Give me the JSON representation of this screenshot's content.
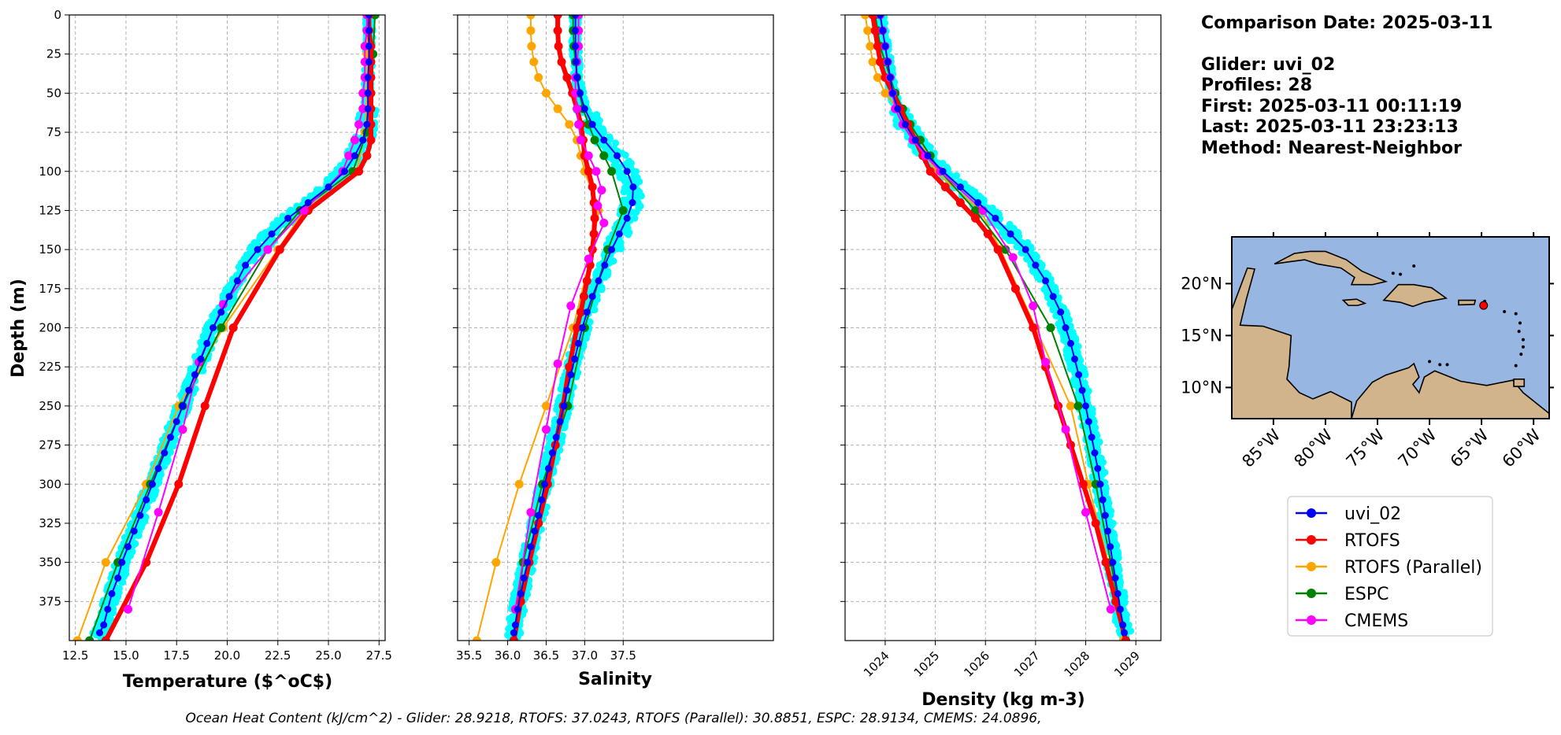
{
  "info": {
    "comparison_date": "Comparison Date: 2025-03-11",
    "glider": "Glider: uvi_02",
    "profiles": "Profiles: 28",
    "first": "First: 2025-03-11 00:11:19",
    "last": "Last: 2025-03-11 23:23:13",
    "method": "Method: Nearest-Neighbor"
  },
  "footer": "Ocean Heat Content (kJ/cm^2) - Glider: 28.9218,  RTOFS: 37.0243,  RTOFS (Parallel): 30.8851,  ESPC: 28.9134,  CMEMS: 24.0896,",
  "colors": {
    "uvi_02": "#0000ff",
    "RTOFS": "#ff0000",
    "RTOFS (Parallel)": "#ffa500",
    "ESPC": "#008000",
    "CMEMS": "#ff00ff",
    "glider_cloud": "#00ffff",
    "ocean": "#97b6e1",
    "land": "#d2b48c"
  },
  "legend": [
    {
      "name": "uvi_02",
      "color": "#0000ff"
    },
    {
      "name": "RTOFS",
      "color": "#ff0000"
    },
    {
      "name": "RTOFS (Parallel)",
      "color": "#ffa500"
    },
    {
      "name": "ESPC",
      "color": "#008000"
    },
    {
      "name": "CMEMS",
      "color": "#ff00ff"
    }
  ],
  "map": {
    "lon_ticks": [
      "85°W",
      "80°W",
      "75°W",
      "70°W",
      "65°W",
      "60°W"
    ],
    "lat_ticks": [
      "20°N",
      "15°N",
      "10°N"
    ],
    "lon_range": [
      -89,
      -58.5
    ],
    "lat_range": [
      7,
      24.5
    ],
    "glider_position": {
      "lon": -64.8,
      "lat": 17.9
    }
  },
  "chart_data": [
    {
      "type": "line",
      "name": "temperature",
      "xlabel": "Temperature ($^oC$)",
      "ylabel": "Depth (m)",
      "xlim": [
        12.2,
        27.8
      ],
      "ylim": [
        400,
        0
      ],
      "x_ticks": [
        "12.5",
        "15.0",
        "17.5",
        "20.0",
        "22.5",
        "25.0",
        "27.5"
      ],
      "x_tick_values": [
        12.5,
        15,
        17.5,
        20,
        22.5,
        25,
        27.5
      ],
      "y_ticks": [
        0,
        25,
        50,
        75,
        100,
        125,
        150,
        175,
        200,
        225,
        250,
        275,
        300,
        325,
        350,
        375
      ],
      "grid": true,
      "series": [
        {
          "name": "uvi_02",
          "depth": [
            0,
            10,
            20,
            30,
            40,
            50,
            60,
            70,
            80,
            90,
            100,
            110,
            120,
            130,
            140,
            150,
            160,
            170,
            180,
            190,
            200,
            210,
            220,
            230,
            240,
            250,
            260,
            270,
            280,
            290,
            300,
            310,
            320,
            330,
            340,
            350,
            360,
            370,
            380,
            390,
            395
          ],
          "values": [
            27.0,
            27.0,
            27.0,
            27.0,
            26.95,
            26.95,
            26.95,
            26.9,
            26.7,
            26.3,
            25.8,
            25.0,
            24.0,
            23.0,
            22.2,
            21.5,
            20.9,
            20.5,
            20.1,
            19.7,
            19.3,
            19.0,
            18.7,
            18.4,
            18.1,
            17.8,
            17.5,
            17.2,
            16.9,
            16.6,
            16.3,
            16.0,
            15.7,
            15.4,
            15.1,
            14.8,
            14.6,
            14.3,
            14.1,
            13.9,
            13.7
          ]
        },
        {
          "name": "RTOFS",
          "depth": [
            0,
            10,
            20,
            30,
            40,
            50,
            60,
            70,
            80,
            90,
            100,
            125,
            150,
            200,
            250,
            300,
            350,
            400
          ],
          "values": [
            27.0,
            27.0,
            27.1,
            27.1,
            27.1,
            27.1,
            27.1,
            27.1,
            27.1,
            26.9,
            26.5,
            24.0,
            22.6,
            20.3,
            18.9,
            17.6,
            16.0,
            14.0
          ]
        },
        {
          "name": "RTOFS (Parallel)",
          "depth": [
            0,
            25,
            50,
            75,
            100,
            125,
            150,
            200,
            250,
            300,
            350,
            400
          ],
          "values": [
            26.9,
            26.9,
            26.9,
            26.8,
            26.4,
            23.8,
            22.5,
            19.8,
            17.6,
            16.0,
            14.0,
            12.6
          ]
        },
        {
          "name": "ESPC",
          "depth": [
            0,
            25,
            50,
            75,
            100,
            125,
            150,
            200,
            250,
            300,
            350,
            400
          ],
          "values": [
            27.3,
            27.2,
            27.0,
            26.9,
            26.2,
            23.6,
            22.0,
            19.7,
            17.8,
            16.2,
            14.6,
            13.2
          ]
        },
        {
          "name": "CMEMS",
          "depth": [
            0,
            10,
            20,
            30,
            40,
            50,
            60,
            70,
            80,
            90,
            100,
            125,
            150,
            185,
            222,
            265,
            318,
            380
          ],
          "values": [
            26.9,
            26.9,
            26.8,
            26.8,
            26.8,
            26.7,
            26.7,
            26.5,
            26.3,
            26.0,
            25.7,
            23.8,
            22.0,
            19.8,
            18.6,
            17.8,
            16.6,
            15.1
          ]
        }
      ]
    },
    {
      "type": "line",
      "name": "salinity",
      "xlabel": "Salinity",
      "xlim": [
        35.35,
        39.45
      ],
      "ylim": [
        400,
        0
      ],
      "x_ticks": [
        "35.5",
        "36.0",
        "36.5",
        "37.0",
        "37.5"
      ],
      "x_tick_values": [
        35.5,
        36.0,
        36.5,
        37.0,
        37.5
      ],
      "grid": true,
      "series": [
        {
          "name": "uvi_02",
          "depth": [
            0,
            10,
            20,
            30,
            40,
            50,
            60,
            70,
            80,
            90,
            100,
            110,
            120,
            130,
            140,
            150,
            160,
            170,
            180,
            190,
            200,
            210,
            220,
            230,
            240,
            250,
            260,
            270,
            280,
            290,
            300,
            310,
            320,
            330,
            340,
            350,
            360,
            370,
            380,
            390,
            395
          ],
          "values": [
            36.88,
            36.88,
            36.88,
            36.89,
            36.9,
            36.94,
            37.0,
            37.1,
            37.25,
            37.42,
            37.55,
            37.63,
            37.62,
            37.55,
            37.45,
            37.35,
            37.26,
            37.18,
            37.1,
            37.03,
            36.97,
            36.92,
            36.87,
            36.82,
            36.77,
            36.73,
            36.68,
            36.63,
            36.58,
            36.53,
            36.48,
            36.44,
            36.4,
            36.35,
            36.3,
            36.26,
            36.21,
            36.17,
            36.13,
            36.1,
            36.08
          ]
        },
        {
          "name": "RTOFS",
          "depth": [
            0,
            10,
            20,
            30,
            40,
            50,
            60,
            70,
            80,
            90,
            100,
            110,
            120,
            130,
            140,
            150,
            160,
            170,
            180,
            190,
            200,
            225,
            250,
            275,
            300,
            325,
            350,
            375,
            400
          ],
          "values": [
            36.65,
            36.65,
            36.66,
            36.7,
            36.77,
            36.84,
            36.9,
            36.95,
            36.98,
            37.0,
            37.05,
            37.1,
            37.12,
            37.13,
            37.12,
            37.1,
            37.07,
            37.03,
            36.99,
            36.95,
            36.9,
            36.8,
            36.72,
            36.62,
            36.52,
            36.4,
            36.28,
            36.17,
            36.08
          ]
        },
        {
          "name": "RTOFS (Parallel)",
          "depth": [
            0,
            10,
            20,
            30,
            40,
            50,
            60,
            70,
            80,
            90,
            100,
            125,
            150,
            200,
            250,
            300,
            350,
            400
          ],
          "values": [
            36.3,
            36.3,
            36.31,
            36.34,
            36.4,
            36.5,
            36.65,
            36.8,
            36.9,
            36.95,
            37.0,
            37.18,
            37.1,
            36.85,
            36.5,
            36.15,
            35.85,
            35.6
          ]
        },
        {
          "name": "ESPC",
          "depth": [
            0,
            10,
            20,
            30,
            40,
            50,
            60,
            70,
            80,
            90,
            100,
            125,
            150,
            200,
            250,
            300,
            350,
            400
          ],
          "values": [
            36.85,
            36.85,
            36.86,
            36.88,
            36.9,
            36.93,
            36.98,
            37.05,
            37.13,
            37.25,
            37.35,
            37.5,
            37.3,
            37.0,
            36.78,
            36.45,
            36.2,
            36.08
          ]
        },
        {
          "name": "CMEMS",
          "depth": [
            0,
            10,
            20,
            30,
            40,
            50,
            60,
            70,
            80,
            90,
            100,
            112,
            122,
            133,
            156,
            186,
            223,
            265,
            318,
            380
          ],
          "values": [
            36.92,
            36.92,
            36.92,
            36.9,
            36.88,
            36.88,
            36.9,
            36.92,
            36.95,
            37.05,
            37.15,
            37.22,
            37.17,
            37.25,
            37.05,
            36.82,
            36.65,
            36.5,
            36.3,
            36.1
          ]
        }
      ]
    },
    {
      "type": "line",
      "name": "density",
      "xlabel": "Density (kg m-3)",
      "xlim": [
        1023.2,
        1029.5
      ],
      "ylim": [
        400,
        0
      ],
      "x_ticks": [
        "1024",
        "1025",
        "1026",
        "1027",
        "1028",
        "1029"
      ],
      "x_tick_values": [
        1024,
        1025,
        1026,
        1027,
        1028,
        1029
      ],
      "grid": true,
      "series": [
        {
          "name": "uvi_02",
          "depth": [
            0,
            10,
            20,
            30,
            40,
            50,
            60,
            70,
            80,
            90,
            100,
            110,
            120,
            130,
            140,
            150,
            160,
            170,
            180,
            190,
            200,
            210,
            220,
            230,
            240,
            250,
            260,
            270,
            280,
            290,
            300,
            310,
            320,
            330,
            340,
            350,
            360,
            370,
            380,
            390,
            395
          ],
          "values": [
            1023.9,
            1023.95,
            1024.0,
            1024.05,
            1024.1,
            1024.15,
            1024.25,
            1024.4,
            1024.6,
            1024.85,
            1025.15,
            1025.5,
            1025.85,
            1026.2,
            1026.5,
            1026.8,
            1027.0,
            1027.2,
            1027.35,
            1027.5,
            1027.6,
            1027.7,
            1027.78,
            1027.86,
            1027.93,
            1028.0,
            1028.06,
            1028.12,
            1028.18,
            1028.24,
            1028.29,
            1028.34,
            1028.39,
            1028.44,
            1028.49,
            1028.54,
            1028.59,
            1028.64,
            1028.69,
            1028.74,
            1028.77
          ]
        },
        {
          "name": "RTOFS",
          "depth": [
            0,
            10,
            20,
            30,
            40,
            50,
            60,
            70,
            80,
            90,
            100,
            110,
            120,
            130,
            140,
            150,
            175,
            200,
            225,
            250,
            275,
            300,
            325,
            350,
            375,
            400
          ],
          "values": [
            1023.75,
            1023.8,
            1023.85,
            1023.9,
            1024.0,
            1024.15,
            1024.3,
            1024.45,
            1024.6,
            1024.75,
            1024.9,
            1025.2,
            1025.5,
            1025.8,
            1026.05,
            1026.25,
            1026.6,
            1026.95,
            1027.2,
            1027.45,
            1027.7,
            1027.95,
            1028.2,
            1028.4,
            1028.6,
            1028.8
          ]
        },
        {
          "name": "RTOFS (Parallel)",
          "depth": [
            0,
            10,
            20,
            30,
            40,
            50,
            60,
            70,
            80,
            90,
            100,
            125,
            150,
            200,
            250,
            300,
            350,
            400
          ],
          "values": [
            1023.6,
            1023.65,
            1023.7,
            1023.75,
            1023.85,
            1024.0,
            1024.25,
            1024.5,
            1024.7,
            1024.85,
            1025.0,
            1025.9,
            1026.3,
            1027.0,
            1027.7,
            1028.05,
            1028.45,
            1028.75
          ]
        },
        {
          "name": "ESPC",
          "depth": [
            0,
            10,
            20,
            30,
            40,
            50,
            60,
            70,
            80,
            90,
            100,
            125,
            150,
            200,
            250,
            300,
            350,
            400
          ],
          "values": [
            1023.8,
            1023.85,
            1023.9,
            1024.0,
            1024.1,
            1024.2,
            1024.35,
            1024.5,
            1024.7,
            1024.9,
            1025.1,
            1025.8,
            1026.4,
            1027.3,
            1027.85,
            1028.2,
            1028.5,
            1028.8
          ]
        },
        {
          "name": "CMEMS",
          "depth": [
            0,
            10,
            20,
            30,
            40,
            50,
            60,
            70,
            80,
            90,
            100,
            125,
            155,
            186,
            222,
            265,
            318,
            380
          ],
          "values": [
            1023.9,
            1023.95,
            1024.0,
            1024.05,
            1024.1,
            1024.15,
            1024.2,
            1024.35,
            1024.55,
            1024.8,
            1025.1,
            1025.95,
            1026.55,
            1026.95,
            1027.2,
            1027.6,
            1028.0,
            1028.5
          ]
        }
      ]
    }
  ]
}
